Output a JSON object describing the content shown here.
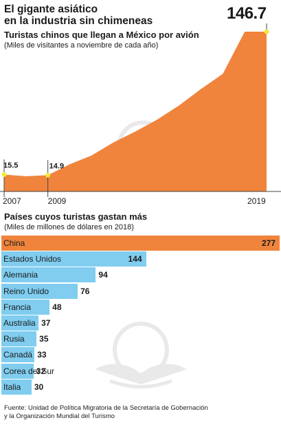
{
  "title_lines": [
    "El gigante asiático",
    "en la industria sin chimeneas"
  ],
  "chart1": {
    "subtitle": "Turistas chinos que llegan a México por avión",
    "note": "(Miles de visitantes a noviembre de cada año)",
    "big_value_label": "146.7",
    "colors": {
      "area": "#f0843c",
      "marker": "#f5e93a",
      "line": "#444444"
    }
  },
  "chart2": {
    "subtitle": "Países cuyos turistas gastan más",
    "note": "(Miles de millones de dólares en 2018)",
    "colors": {
      "highlight": "#f0843c",
      "bar": "#80cdf0"
    }
  },
  "source_lines": [
    "Fuente: Unidad de Política Migratoria de la Secretaría de Gobernación",
    "y la Organización Mundial del Turismo"
  ],
  "chart_data": [
    {
      "type": "area",
      "title": "Turistas chinos que llegan a México por avión",
      "subtitle": "(Miles de visitantes a noviembre de cada año)",
      "x": [
        2007,
        2008,
        2009,
        2010,
        2011,
        2012,
        2013,
        2014,
        2015,
        2016,
        2017,
        2018,
        2019
      ],
      "values": [
        15.5,
        14,
        14.9,
        25,
        33,
        45,
        55,
        66,
        79,
        94,
        108,
        146.7,
        146.7
      ],
      "x_tick_labels": [
        "2007",
        "2009",
        "2019"
      ],
      "point_labels": [
        {
          "x": 2007,
          "label": "15.5"
        },
        {
          "x": 2009,
          "label": "14.9"
        },
        {
          "x": 2019,
          "label": "146.7"
        }
      ]
    },
    {
      "type": "bar",
      "orientation": "horizontal",
      "title": "Países cuyos turistas gastan más",
      "subtitle": "(Miles de millones de dólares en 2018)",
      "categories": [
        "China",
        "Estados Unidos",
        "Alemania",
        "Reino Unido",
        "Francia",
        "Australia",
        "Rusia",
        "Canadá",
        "Corea del Sur",
        "Italia"
      ],
      "values": [
        277,
        144,
        94,
        76,
        48,
        37,
        35,
        33,
        32,
        30
      ],
      "highlight": "China"
    }
  ]
}
